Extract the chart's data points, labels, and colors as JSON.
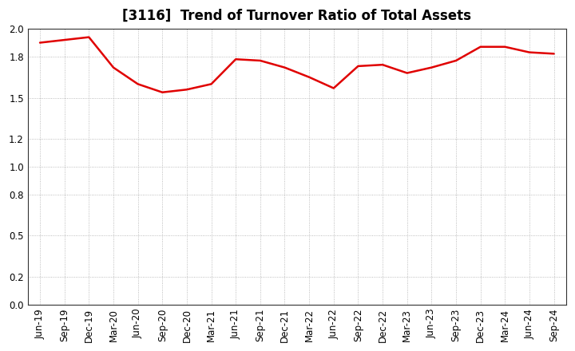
{
  "title": "[3116]  Trend of Turnover Ratio of Total Assets",
  "x_labels": [
    "Jun-19",
    "Sep-19",
    "Dec-19",
    "Mar-20",
    "Jun-20",
    "Sep-20",
    "Dec-20",
    "Mar-21",
    "Jun-21",
    "Sep-21",
    "Dec-21",
    "Mar-22",
    "Jun-22",
    "Sep-22",
    "Dec-22",
    "Mar-23",
    "Jun-23",
    "Sep-23",
    "Dec-23",
    "Mar-24",
    "Jun-24",
    "Sep-24"
  ],
  "y_values": [
    1.9,
    1.92,
    1.94,
    1.72,
    1.6,
    1.54,
    1.56,
    1.6,
    1.78,
    1.77,
    1.72,
    1.65,
    1.57,
    1.73,
    1.74,
    1.68,
    1.72,
    1.77,
    1.87,
    1.87,
    1.83,
    1.82
  ],
  "line_color": "#e00000",
  "line_width": 1.8,
  "ylim": [
    0.0,
    2.0
  ],
  "yticks": [
    0.0,
    0.2,
    0.5,
    0.8,
    1.0,
    1.2,
    1.5,
    1.8,
    2.0
  ],
  "background_color": "#ffffff",
  "grid_color": "#aaaaaa",
  "title_fontsize": 12,
  "tick_fontsize": 8.5
}
